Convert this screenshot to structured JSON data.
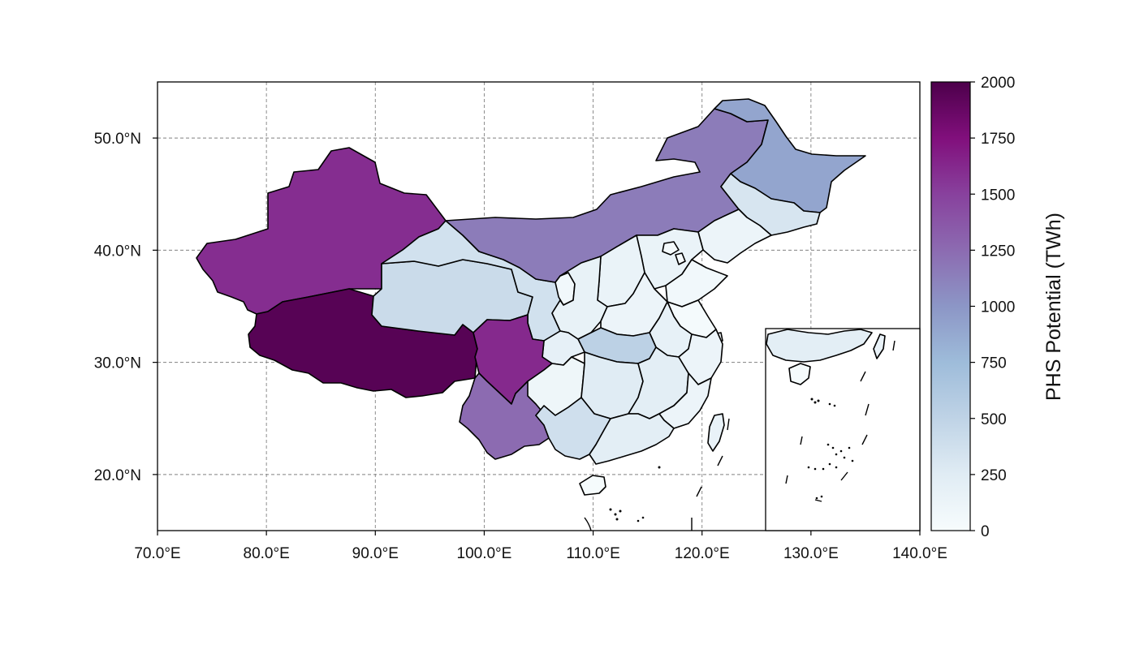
{
  "figure": {
    "type": "choropleth-map",
    "colormap": "BuPu",
    "colorbar": {
      "label": "PHS Potential (TWh)",
      "min": 0,
      "max": 2000,
      "ticks": [
        "0",
        "250",
        "500",
        "750",
        "1000",
        "1250",
        "1500",
        "1750",
        "2000"
      ],
      "stops": [
        "#f7fcfd",
        "#e0ecf4",
        "#bfd3e6",
        "#9ebcda",
        "#8c96c6",
        "#8c6bb1",
        "#88419d",
        "#810f7c",
        "#4d004b"
      ]
    },
    "x_axis": {
      "ticks": [
        "70.0°E",
        "80.0°E",
        "90.0°E",
        "100.0°E",
        "110.0°E",
        "120.0°E",
        "130.0°E",
        "140.0°E"
      ],
      "range": [
        70,
        140
      ]
    },
    "y_axis": {
      "ticks": [
        "20.0°N",
        "30.0°N",
        "40.0°N",
        "50.0°N"
      ],
      "range": [
        15,
        55
      ]
    },
    "grid": true,
    "inset": "South China Sea"
  },
  "chart_data": {
    "type": "choropleth",
    "value_unit": "TWh",
    "regions": [
      {
        "name": "Tibet",
        "value": 1950
      },
      {
        "name": "Xinjiang",
        "value": 1600
      },
      {
        "name": "Sichuan",
        "value": 1620
      },
      {
        "name": "Inner Mongolia",
        "value": 1150
      },
      {
        "name": "Yunnan",
        "value": 1250
      },
      {
        "name": "Heilongjiang",
        "value": 900
      },
      {
        "name": "Hubei",
        "value": 520
      },
      {
        "name": "Qinghai",
        "value": 420
      },
      {
        "name": "Gansu",
        "value": 360
      },
      {
        "name": "Guangxi",
        "value": 380
      },
      {
        "name": "Jilin",
        "value": 320
      },
      {
        "name": "Guizhou",
        "value": 100
      },
      {
        "name": "Hunan",
        "value": 250
      },
      {
        "name": "Jiangxi",
        "value": 220
      },
      {
        "name": "Guangdong",
        "value": 220
      },
      {
        "name": "Fujian",
        "value": 120
      },
      {
        "name": "Zhejiang",
        "value": 120
      },
      {
        "name": "Anhui",
        "value": 170
      },
      {
        "name": "Shaanxi",
        "value": 160
      },
      {
        "name": "Shanxi",
        "value": 140
      },
      {
        "name": "Henan",
        "value": 120
      },
      {
        "name": "Hebei",
        "value": 140
      },
      {
        "name": "Liaoning",
        "value": 120
      },
      {
        "name": "Shandong",
        "value": 60
      },
      {
        "name": "Jiangsu",
        "value": 30
      },
      {
        "name": "Ningxia",
        "value": 60
      },
      {
        "name": "Chongqing",
        "value": 180
      },
      {
        "name": "Taiwan",
        "value": 150
      },
      {
        "name": "Hainan",
        "value": 20
      },
      {
        "name": "Beijing",
        "value": 30
      },
      {
        "name": "Tianjin",
        "value": 10
      },
      {
        "name": "Shanghai",
        "value": 5
      }
    ]
  }
}
